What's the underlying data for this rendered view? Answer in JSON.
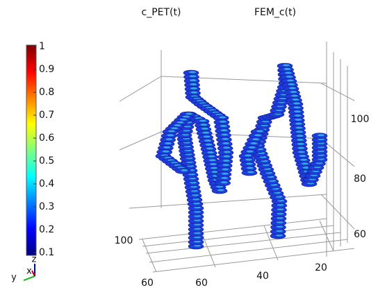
{
  "chart_data": {
    "type": "isosurface",
    "titles": [
      "c_PET(t)",
      "FEM_c(t)"
    ],
    "colorbar": {
      "lim": [
        0.1,
        1
      ],
      "ticks": [
        1,
        0.9,
        0.8,
        0.7,
        0.6,
        0.5,
        0.4,
        0.3,
        0.2,
        0.1
      ],
      "colors": [
        "#00007f",
        "#0000ff",
        "#007fff",
        "#00ffff",
        "#7fff7f",
        "#ffff00",
        "#ff7f00",
        "#ff0000",
        "#7f0000"
      ]
    },
    "zticks": [
      60,
      80,
      100
    ],
    "xticks": [
      20,
      40,
      60
    ],
    "yticks": [
      60,
      100
    ],
    "axes": [
      "z",
      "x",
      "y"
    ]
  }
}
